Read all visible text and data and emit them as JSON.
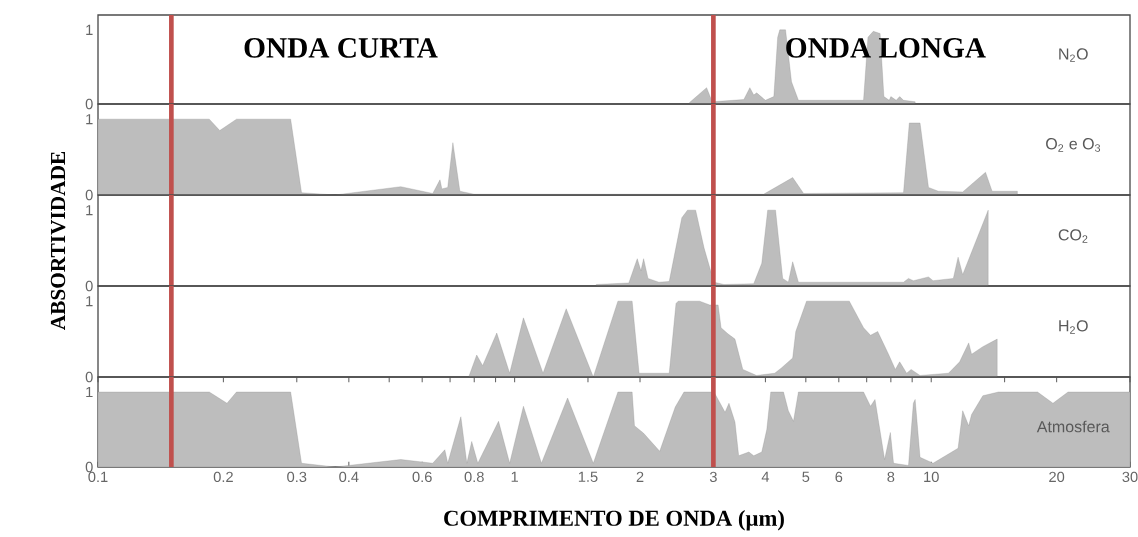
{
  "chart_data": [
    {
      "type": "area",
      "log": "x",
      "xlim": [
        0.1,
        30
      ],
      "ylim": [
        0,
        1.2
      ],
      "yticks": [
        0,
        1
      ],
      "tick_labels": "y",
      "annotations": [
        "ONDA CURTA",
        "ONDA LONGA"
      ],
      "ref_lines": [
        {
          "axis": "x",
          "value": 0.15,
          "color": "#c0504d"
        },
        {
          "axis": "x",
          "value": 3,
          "color": "#c0504d"
        }
      ],
      "series": [
        {
          "name": "N$_{2}$O",
          "color": "#bdbdbd",
          "x": [
            2.63,
            2.89,
            2.98,
            3.55,
            3.67,
            3.75,
            3.81,
            4.0,
            4.19,
            4.28,
            4.33,
            4.47,
            4.62,
            4.8,
            6.88,
            7.05,
            7.26,
            7.54,
            7.7,
            7.93,
            8.0,
            8.24,
            8.4,
            8.58,
            9.15
          ],
          "values": [
            0.02,
            0.22,
            0.03,
            0.06,
            0.22,
            0.12,
            0.15,
            0.05,
            0.1,
            0.9,
            1.0,
            1.0,
            0.3,
            0.05,
            0.05,
            0.9,
            0.98,
            0.95,
            0.1,
            0.05,
            0.1,
            0.05,
            0.1,
            0.05,
            0.03
          ]
        }
      ]
    },
    {
      "type": "area",
      "log": "x",
      "xlim": [
        0.1,
        30
      ],
      "ylim": [
        0,
        1.2
      ],
      "yticks": [
        0,
        1
      ],
      "tick_labels": "y",
      "ref_lines": [
        {
          "axis": "x",
          "value": 0.15,
          "color": "#c0504d"
        },
        {
          "axis": "x",
          "value": 3,
          "color": "#c0504d"
        }
      ],
      "series": [
        {
          "name": "O$_{2}$ e O$_{3}$",
          "color": "#bdbdbd",
          "x": [
            0.1,
            0.185,
            0.196,
            0.215,
            0.29,
            0.308,
            0.371,
            0.533,
            0.636,
            0.662,
            0.669,
            0.691,
            0.711,
            0.739,
            0.8,
            3.96,
            4.65,
            4.94,
            8.58,
            8.86,
            9.4,
            9.85,
            10.4,
            11.9,
            13.5,
            14.0,
            16.1
          ],
          "values": [
            1.0,
            1.0,
            0.85,
            1.0,
            1.0,
            0.03,
            0.0,
            0.11,
            0.02,
            0.2,
            0.08,
            0.1,
            0.69,
            0.05,
            0.01,
            0.01,
            0.23,
            0.02,
            0.03,
            0.95,
            0.95,
            0.1,
            0.05,
            0.04,
            0.3,
            0.05,
            0.05
          ]
        }
      ]
    },
    {
      "type": "area",
      "log": "x",
      "xlim": [
        0.1,
        30
      ],
      "ylim": [
        0,
        1.2
      ],
      "yticks": [
        0,
        1
      ],
      "tick_labels": "y",
      "ylabel": "ABSORTIVIDADE",
      "ref_lines": [
        {
          "axis": "x",
          "value": 0.15,
          "color": "#c0504d"
        },
        {
          "axis": "x",
          "value": 3,
          "color": "#c0504d"
        }
      ],
      "series": [
        {
          "name": "CO$_{2}$",
          "color": "#bdbdbd",
          "x": [
            1.57,
            1.88,
            1.97,
            2.01,
            2.04,
            2.09,
            2.22,
            2.35,
            2.52,
            2.6,
            2.72,
            2.85,
            3.01,
            3.18,
            3.75,
            3.92,
            4.05,
            4.23,
            4.4,
            4.54,
            4.65,
            4.8,
            8.58,
            8.82,
            9.06,
            9.85,
            10.1,
            11.3,
            11.6,
            11.9,
            13.7
          ],
          "values": [
            0.02,
            0.04,
            0.36,
            0.2,
            0.36,
            0.1,
            0.05,
            0.06,
            0.9,
            1.0,
            1.0,
            0.5,
            0.05,
            0.02,
            0.03,
            0.3,
            1.0,
            1.0,
            0.1,
            0.05,
            0.32,
            0.05,
            0.05,
            0.1,
            0.07,
            0.12,
            0.07,
            0.1,
            0.38,
            0.15,
            1.0
          ]
        }
      ]
    },
    {
      "type": "area",
      "log": "x",
      "xlim": [
        0.1,
        30
      ],
      "ylim": [
        0,
        1.2
      ],
      "yticks": [
        0,
        1
      ],
      "tick_labels": "y",
      "ref_lines": [
        {
          "axis": "x",
          "value": 0.15,
          "color": "#c0504d"
        },
        {
          "axis": "x",
          "value": 3,
          "color": "#c0504d"
        }
      ],
      "series": [
        {
          "name": "H$_{2}$O",
          "color": "#bdbdbd",
          "x": [
            0.776,
            0.811,
            0.838,
            0.906,
            0.973,
            1.05,
            1.17,
            1.33,
            1.545,
            1.77,
            1.915,
            1.99,
            2.09,
            2.35,
            2.44,
            2.47,
            2.78,
            2.94,
            3.08,
            3.13,
            3.25,
            3.38,
            3.53,
            3.81,
            4.21,
            4.37,
            4.65,
            4.73,
            5.02,
            6.36,
            6.88,
            7.15,
            7.44,
            7.9,
            8.2,
            8.4,
            8.73,
            8.95,
            9.4,
            11.0,
            11.7,
            12.3,
            12.5,
            13.3,
            14.4
          ],
          "values": [
            0,
            0.29,
            0.15,
            0.58,
            0.05,
            0.78,
            0.05,
            0.9,
            0.0,
            1.0,
            1.0,
            0.05,
            0.05,
            0.05,
            0.97,
            1.0,
            1.0,
            0.95,
            0.95,
            0.65,
            0.57,
            0.5,
            0.1,
            0.02,
            0.05,
            0.12,
            0.25,
            0.6,
            1.0,
            1.0,
            0.65,
            0.55,
            0.6,
            0.3,
            0.1,
            0.2,
            0.05,
            0.1,
            0.02,
            0.05,
            0.2,
            0.45,
            0.3,
            0.4,
            0.5
          ]
        }
      ]
    },
    {
      "type": "area",
      "log": "x",
      "xlim": [
        0.1,
        30
      ],
      "ylim": [
        0,
        1.2
      ],
      "yticks": [
        0,
        1
      ],
      "xlabel": "COMPRIMENTO DE ONDA (µm)",
      "xticks": [
        0.1,
        0.2,
        0.3,
        0.4,
        {
          "value": 0.5,
          "label": null
        },
        0.6,
        {
          "value": 0.7,
          "label": null
        },
        0.8,
        {
          "value": 0.9,
          "label": null
        },
        1,
        1.5,
        2,
        3,
        4,
        5,
        6,
        {
          "value": 7,
          "label": null
        },
        8,
        {
          "value": 9,
          "label": null
        },
        10,
        {
          "value": 15,
          "label": null
        },
        20,
        30
      ],
      "ref_lines": [
        {
          "axis": "x",
          "value": 0.15,
          "color": "#c0504d"
        },
        {
          "axis": "x",
          "value": 3,
          "color": "#c0504d"
        }
      ],
      "series": [
        {
          "name": "Atmosfera",
          "color": "#bdbdbd",
          "x": [
            0.1,
            0.185,
            0.204,
            0.215,
            0.29,
            0.308,
            0.371,
            0.533,
            0.636,
            0.68,
            0.691,
            0.743,
            0.768,
            0.789,
            0.816,
            0.915,
            0.973,
            1.05,
            1.16,
            1.34,
            1.545,
            1.77,
            1.915,
            1.94,
            2.04,
            2.23,
            2.43,
            2.55,
            3.01,
            3.2,
            3.27,
            3.38,
            3.45,
            3.65,
            3.75,
            3.92,
            4.03,
            4.12,
            4.42,
            4.54,
            4.67,
            4.8,
            6.88,
            7.15,
            7.33,
            7.73,
            7.98,
            8.12,
            8.82,
            9.06,
            9.15,
            9.4,
            10.1,
            11.6,
            11.9,
            12.3,
            12.5,
            13.3,
            14.5,
            18.0,
            19.6,
            21.3,
            30
          ],
          "values": [
            1.0,
            1.0,
            0.85,
            1.0,
            1.0,
            0.05,
            0.0,
            0.1,
            0.05,
            0.23,
            0.05,
            0.67,
            0.05,
            0.34,
            0.05,
            0.61,
            0.05,
            0.81,
            0.05,
            0.92,
            0.05,
            1.0,
            1.0,
            0.55,
            0.45,
            0.21,
            0.8,
            1.0,
            1.0,
            0.73,
            0.85,
            0.6,
            0.15,
            0.2,
            0.15,
            0.2,
            0.5,
            1.0,
            1.0,
            0.75,
            0.61,
            1.0,
            1.0,
            0.81,
            0.9,
            0.1,
            0.46,
            0.05,
            0.02,
            0.85,
            0.9,
            0.13,
            0.05,
            0.25,
            0.75,
            0.55,
            0.7,
            0.95,
            1.0,
            1.0,
            0.85,
            1.0,
            1.0
          ]
        }
      ]
    }
  ]
}
